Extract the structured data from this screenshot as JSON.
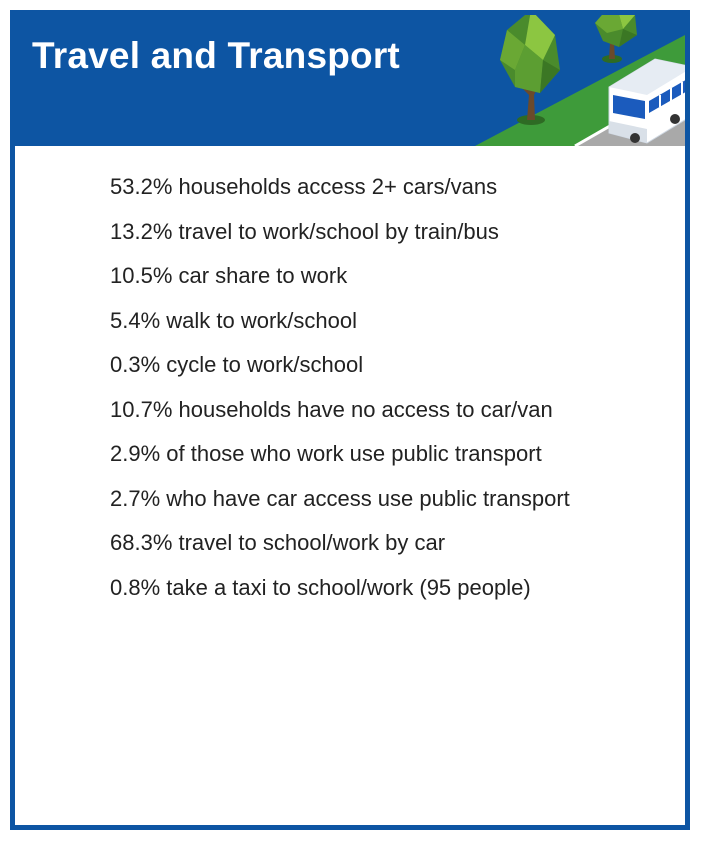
{
  "header": {
    "title": "Travel and Transport",
    "background_color": "#0d55a3",
    "illustration_icons": [
      "tree-icon",
      "bus-icon",
      "road-icon"
    ]
  },
  "stats": [
    "53.2% households access 2+ cars/vans",
    "13.2% travel to work/school by train/bus",
    "10.5% car share to work",
    "5.4% walk to work/school",
    "0.3% cycle to work/school",
    "10.7% households have no access to car/van",
    "2.9% of those who work use public transport",
    "2.7% who have car access use public transport",
    "68.3% travel to school/work by car",
    "0.8% take a taxi to school/work (95 people)"
  ],
  "colors": {
    "border": "#0d55a3",
    "grass": "#3e9b3a",
    "road": "#a9a9a9",
    "tree_light": "#8cc641",
    "tree_dark": "#4a8b2c"
  }
}
